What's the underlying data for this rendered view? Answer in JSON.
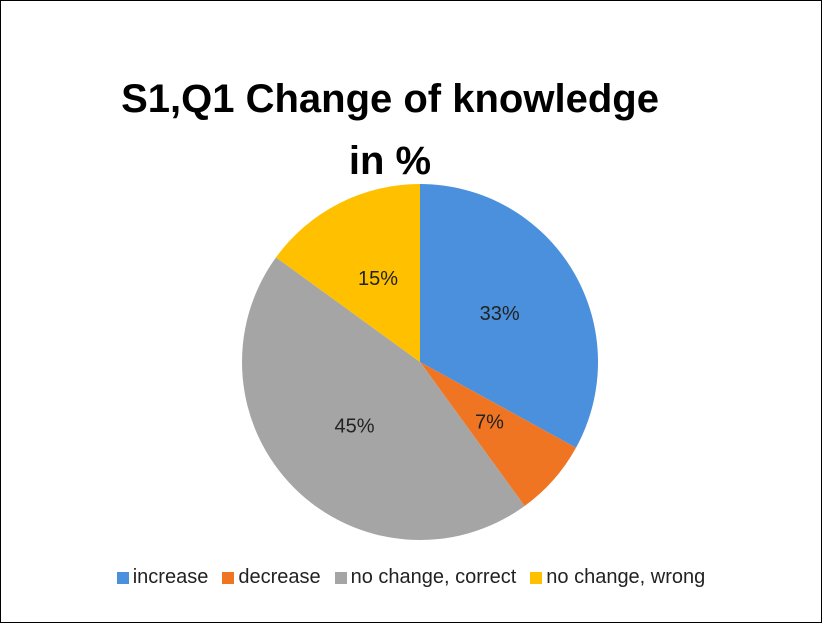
{
  "chart_data": {
    "type": "pie",
    "title": "S1,Q1 Change of knowledge in %",
    "categories": [
      "increase",
      "decrease",
      "no change, correct",
      "no change, wrong"
    ],
    "values": [
      33,
      7,
      45,
      15
    ],
    "value_labels": [
      "33%",
      "7%",
      "45%",
      "15%"
    ],
    "colors": [
      "#4a90dc",
      "#f07522",
      "#a5a5a5",
      "#ffc000"
    ]
  }
}
